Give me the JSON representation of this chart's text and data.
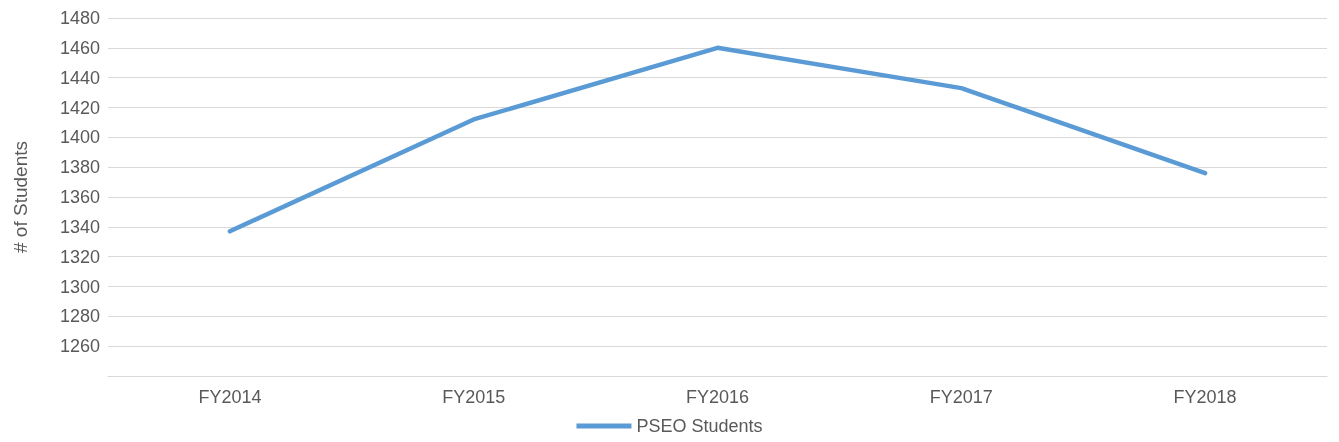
{
  "chart_data": {
    "type": "line",
    "ylabel": "# of Students",
    "categories": [
      "FY2014",
      "FY2015",
      "FY2016",
      "FY2017",
      "FY2018"
    ],
    "series": [
      {
        "name": "PSEO Students",
        "color": "#5b9bd5",
        "values": [
          1337,
          1412,
          1460,
          1433,
          1376
        ]
      }
    ],
    "ylim": [
      1240,
      1480
    ],
    "yticks": [
      {
        "value": 1240,
        "label": null
      },
      1260,
      1280,
      1300,
      1320,
      1340,
      1360,
      1380,
      1400,
      1420,
      1440,
      1460,
      1480
    ],
    "grid": "y",
    "legend": "bottom",
    "marker": "none",
    "line_style": "solid"
  }
}
